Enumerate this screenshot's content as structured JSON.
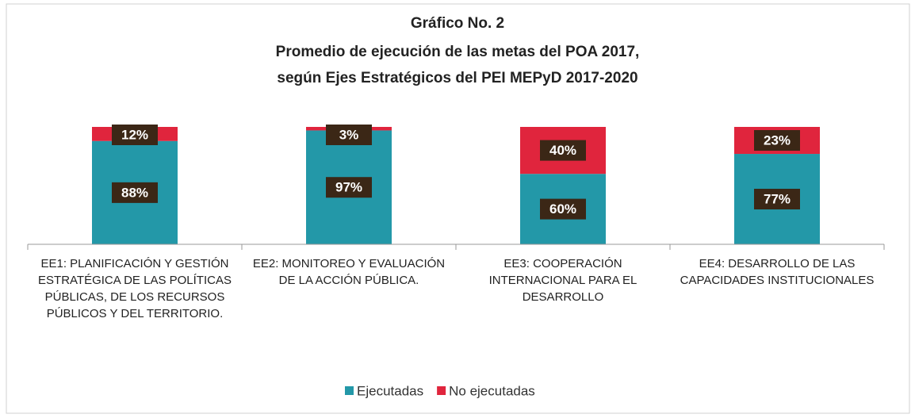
{
  "chart_data": {
    "type": "stacked_bar",
    "title": "Gráfico No. 2",
    "subtitle": [
      "Promedio de ejecución de las metas del POA 2017,",
      "según Ejes Estratégicos del PEI MEPyD 2017-2020"
    ],
    "categories": [
      "EE1: PLANIFICACIÓN Y GESTIÓN ESTRATÉGICA DE LAS POLÍTICAS PÚBLICAS, DE LOS RECURSOS PÚBLICOS Y DEL TERRITORIO.",
      "EE2: MONITOREO Y EVALUACIÓN DE LA ACCIÓN PÚBLICA.",
      "EE3: COOPERACIÓN INTERNACIONAL PARA EL DESARROLLO",
      "EE4: DESARROLLO DE LAS CAPACIDADES INSTITUCIONALES"
    ],
    "series": [
      {
        "name": "Ejecutadas",
        "color": "#2398a8",
        "values": [
          88,
          97,
          60,
          77
        ],
        "value_labels": [
          "88%",
          "97%",
          "60%",
          "77%"
        ]
      },
      {
        "name": "No ejecutadas",
        "color": "#e0253d",
        "values": [
          12,
          3,
          40,
          23
        ],
        "value_labels": [
          "12%",
          "3%",
          "40%",
          "23%"
        ]
      }
    ],
    "ylim": [
      0,
      100
    ],
    "legend": "bottom"
  }
}
